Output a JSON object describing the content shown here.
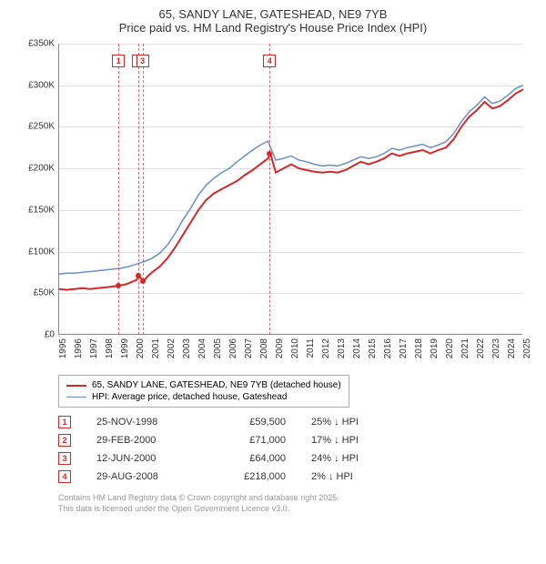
{
  "title": {
    "line1": "65, SANDY LANE, GATESHEAD, NE9 7YB",
    "line2": "Price paid vs. HM Land Registry's House Price Index (HPI)"
  },
  "chart": {
    "type": "line",
    "background_color": "#ffffff",
    "grid_color": "#e0e0e0",
    "ylim": [
      0,
      350
    ],
    "ytick_step": 50,
    "ytick_prefix": "£",
    "ytick_suffix": "K",
    "x_years": [
      1995,
      1996,
      1997,
      1998,
      1999,
      2000,
      2001,
      2002,
      2003,
      2004,
      2005,
      2006,
      2007,
      2008,
      2009,
      2010,
      2011,
      2012,
      2013,
      2014,
      2015,
      2016,
      2017,
      2018,
      2019,
      2020,
      2021,
      2022,
      2023,
      2024,
      2025
    ],
    "series": [
      {
        "id": "price_paid",
        "label": "65, SANDY LANE, GATESHEAD, NE9 7YB (detached house)",
        "color": "#d62728",
        "line_width": 2,
        "points": [
          [
            1995.0,
            55
          ],
          [
            1995.5,
            54
          ],
          [
            1996.0,
            55
          ],
          [
            1996.5,
            56
          ],
          [
            1997.0,
            55
          ],
          [
            1997.5,
            56
          ],
          [
            1998.0,
            57
          ],
          [
            1998.5,
            58
          ],
          [
            1998.9,
            59.5
          ],
          [
            1999.2,
            60
          ],
          [
            1999.5,
            62
          ],
          [
            2000.0,
            66
          ],
          [
            2000.16,
            71
          ],
          [
            2000.45,
            64
          ],
          [
            2000.7,
            70
          ],
          [
            2001.0,
            75
          ],
          [
            2001.5,
            82
          ],
          [
            2002.0,
            92
          ],
          [
            2002.5,
            105
          ],
          [
            2003.0,
            120
          ],
          [
            2003.5,
            135
          ],
          [
            2004.0,
            150
          ],
          [
            2004.5,
            162
          ],
          [
            2005.0,
            170
          ],
          [
            2005.5,
            175
          ],
          [
            2006.0,
            180
          ],
          [
            2006.5,
            185
          ],
          [
            2007.0,
            192
          ],
          [
            2007.5,
            198
          ],
          [
            2008.0,
            205
          ],
          [
            2008.5,
            212
          ],
          [
            2008.66,
            218
          ],
          [
            2009.0,
            195
          ],
          [
            2009.5,
            200
          ],
          [
            2010.0,
            205
          ],
          [
            2010.5,
            200
          ],
          [
            2011.0,
            198
          ],
          [
            2011.5,
            196
          ],
          [
            2012.0,
            195
          ],
          [
            2012.5,
            196
          ],
          [
            2013.0,
            195
          ],
          [
            2013.5,
            198
          ],
          [
            2014.0,
            203
          ],
          [
            2014.5,
            208
          ],
          [
            2015.0,
            205
          ],
          [
            2015.5,
            208
          ],
          [
            2016.0,
            212
          ],
          [
            2016.5,
            218
          ],
          [
            2017.0,
            215
          ],
          [
            2017.5,
            218
          ],
          [
            2018.0,
            220
          ],
          [
            2018.5,
            222
          ],
          [
            2019.0,
            218
          ],
          [
            2019.5,
            222
          ],
          [
            2020.0,
            225
          ],
          [
            2020.5,
            235
          ],
          [
            2021.0,
            250
          ],
          [
            2021.5,
            262
          ],
          [
            2022.0,
            270
          ],
          [
            2022.5,
            280
          ],
          [
            2023.0,
            272
          ],
          [
            2023.5,
            275
          ],
          [
            2024.0,
            282
          ],
          [
            2024.5,
            290
          ],
          [
            2025.0,
            295
          ]
        ]
      },
      {
        "id": "hpi",
        "label": "HPI: Average price, detached house, Gateshead",
        "color": "#6a8fc8",
        "line_width": 1.5,
        "points": [
          [
            1995.0,
            73
          ],
          [
            1995.5,
            74
          ],
          [
            1996.0,
            74
          ],
          [
            1996.5,
            75
          ],
          [
            1997.0,
            76
          ],
          [
            1997.5,
            77
          ],
          [
            1998.0,
            78
          ],
          [
            1998.5,
            79
          ],
          [
            1999.0,
            80
          ],
          [
            1999.5,
            82
          ],
          [
            2000.0,
            85
          ],
          [
            2000.5,
            88
          ],
          [
            2001.0,
            92
          ],
          [
            2001.5,
            98
          ],
          [
            2002.0,
            108
          ],
          [
            2002.5,
            122
          ],
          [
            2003.0,
            138
          ],
          [
            2003.5,
            152
          ],
          [
            2004.0,
            168
          ],
          [
            2004.5,
            180
          ],
          [
            2005.0,
            188
          ],
          [
            2005.5,
            195
          ],
          [
            2006.0,
            200
          ],
          [
            2006.5,
            208
          ],
          [
            2007.0,
            215
          ],
          [
            2007.5,
            222
          ],
          [
            2008.0,
            228
          ],
          [
            2008.5,
            233
          ],
          [
            2009.0,
            210
          ],
          [
            2009.5,
            212
          ],
          [
            2010.0,
            215
          ],
          [
            2010.5,
            210
          ],
          [
            2011.0,
            208
          ],
          [
            2011.5,
            205
          ],
          [
            2012.0,
            203
          ],
          [
            2012.5,
            204
          ],
          [
            2013.0,
            203
          ],
          [
            2013.5,
            206
          ],
          [
            2014.0,
            210
          ],
          [
            2014.5,
            214
          ],
          [
            2015.0,
            212
          ],
          [
            2015.5,
            214
          ],
          [
            2016.0,
            218
          ],
          [
            2016.5,
            224
          ],
          [
            2017.0,
            222
          ],
          [
            2017.5,
            225
          ],
          [
            2018.0,
            227
          ],
          [
            2018.5,
            229
          ],
          [
            2019.0,
            225
          ],
          [
            2019.5,
            228
          ],
          [
            2020.0,
            232
          ],
          [
            2020.5,
            242
          ],
          [
            2021.0,
            256
          ],
          [
            2021.5,
            268
          ],
          [
            2022.0,
            276
          ],
          [
            2022.5,
            286
          ],
          [
            2023.0,
            278
          ],
          [
            2023.5,
            281
          ],
          [
            2024.0,
            288
          ],
          [
            2024.5,
            296
          ],
          [
            2025.0,
            300
          ]
        ]
      }
    ],
    "markers": [
      {
        "n": "1",
        "x": 1998.9,
        "y": 59.5
      },
      {
        "n": "2",
        "x": 2000.16,
        "y": 71
      },
      {
        "n": "3",
        "x": 2000.45,
        "y": 64
      },
      {
        "n": "4",
        "x": 2008.66,
        "y": 218
      }
    ],
    "marker_border_color": "#d62728",
    "marker_text_color": "#d62728",
    "vline_color": "#d62728"
  },
  "legend": {
    "items": [
      {
        "color": "#d62728",
        "width": 2,
        "label": "65, SANDY LANE, GATESHEAD, NE9 7YB (detached house)"
      },
      {
        "color": "#6a8fc8",
        "width": 1.5,
        "label": "HPI: Average price, detached house, Gateshead"
      }
    ]
  },
  "sales": [
    {
      "n": "1",
      "date": "25-NOV-1998",
      "price": "£59,500",
      "diff": "25% ↓ HPI"
    },
    {
      "n": "2",
      "date": "29-FEB-2000",
      "price": "£71,000",
      "diff": "17% ↓ HPI"
    },
    {
      "n": "3",
      "date": "12-JUN-2000",
      "price": "£64,000",
      "diff": "24% ↓ HPI"
    },
    {
      "n": "4",
      "date": "29-AUG-2008",
      "price": "£218,000",
      "diff": "2% ↓ HPI"
    }
  ],
  "footer": {
    "line1": "Contains HM Land Registry data © Crown copyright and database right 2025.",
    "line2": "This data is licensed under the Open Government Licence v3.0."
  }
}
